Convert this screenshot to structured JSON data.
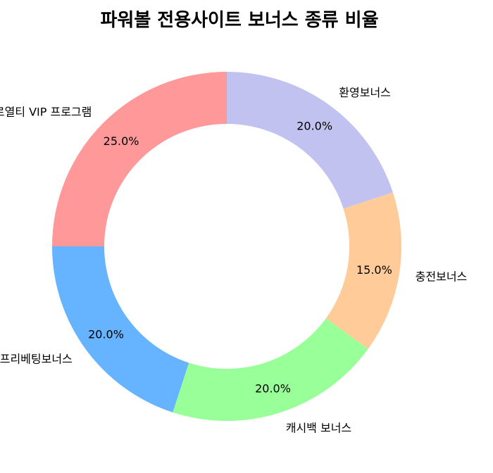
{
  "chart_data": {
    "type": "pie",
    "variant": "donut",
    "title": "파워볼 전용사이트 보너스 종류 비율",
    "start_angle_deg": 90,
    "direction": "counterclockwise",
    "slices": [
      {
        "label": "로열티 VIP 프로그램",
        "value": 25.0,
        "pct_label": "25.0%",
        "color": "#ff9999"
      },
      {
        "label": "프리베팅보너스",
        "value": 20.0,
        "pct_label": "20.0%",
        "color": "#66b3ff"
      },
      {
        "label": "캐시백 보너스",
        "value": 20.0,
        "pct_label": "20.0%",
        "color": "#99ff99"
      },
      {
        "label": "충전보너스",
        "value": 15.0,
        "pct_label": "15.0%",
        "color": "#ffcc99"
      },
      {
        "label": "환영보너스",
        "value": 20.0,
        "pct_label": "20.0%",
        "color": "#c2c2f0"
      }
    ]
  }
}
